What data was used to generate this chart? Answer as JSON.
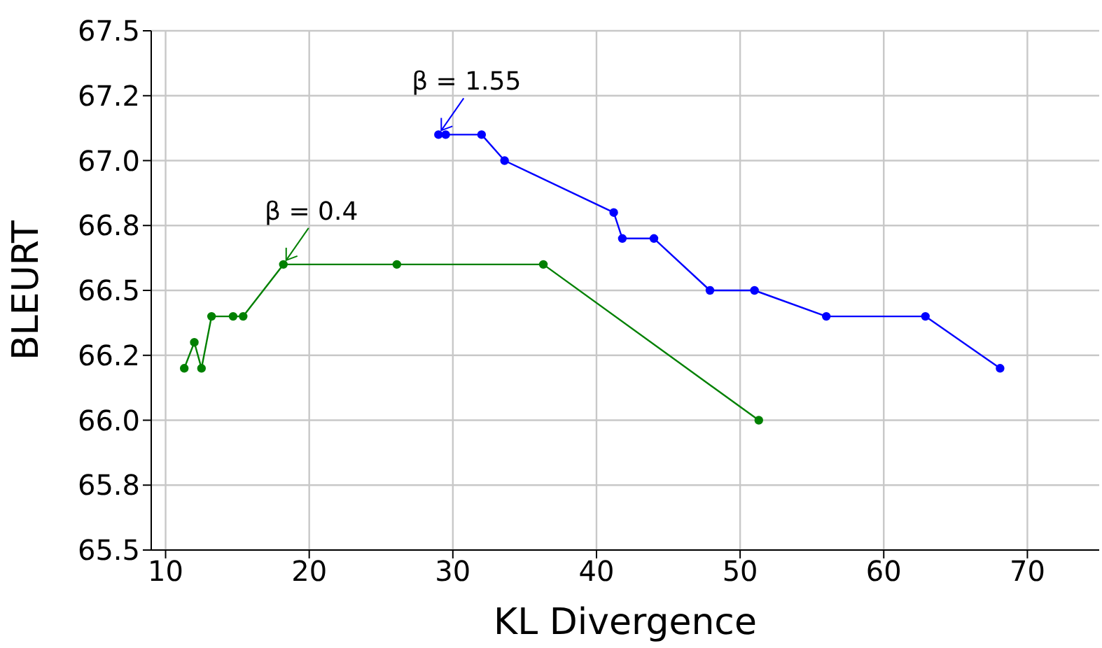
{
  "chart_data": {
    "type": "line",
    "xlabel": "KL Divergence",
    "ylabel": "BLEURT",
    "xlim": [
      9,
      75
    ],
    "xticks": [
      10,
      20,
      30,
      40,
      50,
      60,
      70
    ],
    "ylim": [
      65.5,
      67.5
    ],
    "yticks": [
      65.5,
      {
        "value": 65.75,
        "label": "65.8"
      },
      {
        "value": 66,
        "label": "66.0"
      },
      {
        "value": 66.25,
        "label": "66.2"
      },
      66.5,
      {
        "value": 66.75,
        "label": "66.8"
      },
      {
        "value": 67,
        "label": "67.0"
      },
      {
        "value": 67.25,
        "label": "67.2"
      },
      67.5
    ],
    "grid": true,
    "marker": "circle",
    "line_style": "solid",
    "series": [
      {
        "color": "#0000ff",
        "x": [
          29.0,
          29.5,
          32.0,
          33.6,
          41.2,
          41.8,
          44.0,
          47.9,
          51.0,
          56.0,
          62.9,
          68.1
        ],
        "values": [
          67.1,
          67.1,
          67.1,
          67.0,
          66.8,
          66.7,
          66.7,
          66.5,
          66.5,
          66.4,
          66.4,
          66.2
        ]
      },
      {
        "color": "#008000",
        "x": [
          11.3,
          12.0,
          12.5,
          13.2,
          14.7,
          15.4,
          18.2,
          26.1,
          36.3,
          51.3
        ],
        "values": [
          66.2,
          66.3,
          66.2,
          66.4,
          66.4,
          66.4,
          66.6,
          66.6,
          66.6,
          66.0
        ]
      }
    ],
    "annotations": [
      {
        "text": "β = 1.55",
        "x": 29.0,
        "y": 67.1
      },
      {
        "text": "β = 0.4",
        "x": 18.2,
        "y": 66.6
      }
    ]
  }
}
